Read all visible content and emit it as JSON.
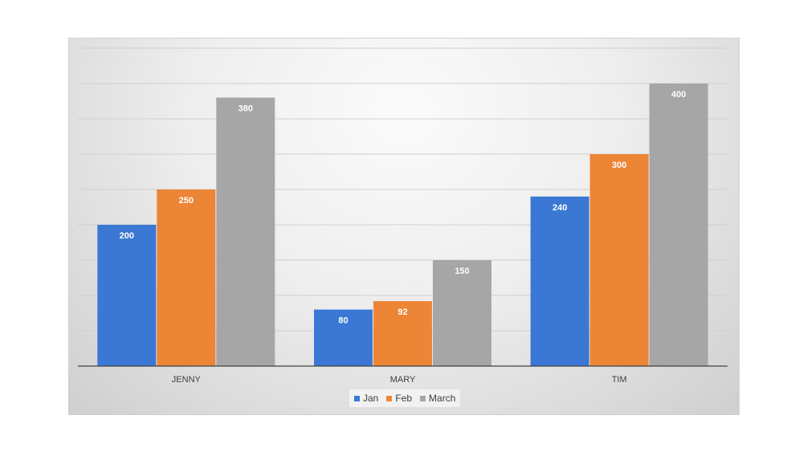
{
  "chart_data": {
    "type": "bar",
    "categories": [
      "JENNY",
      "MARY",
      "TIM"
    ],
    "series": [
      {
        "name": "Jan",
        "values": [
          200,
          80,
          240
        ],
        "color": "#3a78d4"
      },
      {
        "name": "Feb",
        "values": [
          250,
          92,
          300
        ],
        "color": "#ed8536"
      },
      {
        "name": "March",
        "values": [
          380,
          150,
          400
        ],
        "color": "#a6a6a6"
      }
    ],
    "ylim": [
      0,
      400
    ],
    "grid": true,
    "legend_position": "bottom",
    "data_labels": true
  }
}
